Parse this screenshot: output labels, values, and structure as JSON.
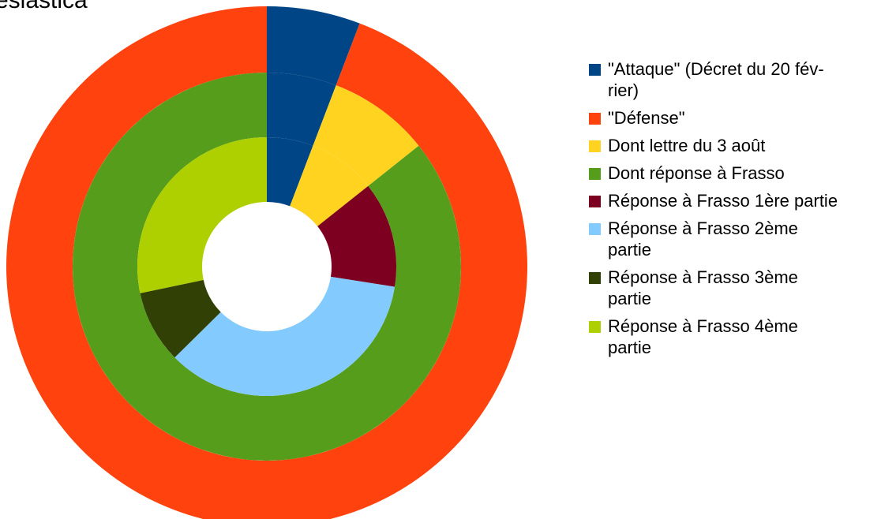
{
  "chart_data": {
    "type": "donut",
    "title": "esiastica",
    "legend_position": "right",
    "rings": [
      {
        "name": "",
        "slices": [
          {
            "legend_index": 0,
            "value": 5.8
          },
          {
            "legend_index": 1,
            "value": 94.2
          }
        ]
      },
      {
        "name": "",
        "slices": [
          {
            "legend_index": 0,
            "value": 5.8
          },
          {
            "legend_index": 2,
            "value": 8.5
          },
          {
            "legend_index": 3,
            "value": 85.7
          }
        ]
      },
      {
        "name": "",
        "slices": [
          {
            "legend_index": 0,
            "value": 5.8
          },
          {
            "legend_index": 2,
            "value": 8.5
          },
          {
            "legend_index": 4,
            "value": 13.2
          },
          {
            "legend_index": 5,
            "value": 35.1
          },
          {
            "legend_index": 6,
            "value": 9.1
          },
          {
            "legend_index": 7,
            "value": 28.3
          }
        ]
      }
    ],
    "legend": [
      {
        "label": "\"Attaque\" (Décret du 20 fév-rier)",
        "lines": [
          "\"Attaque\" (Décret du 20 fév-",
          "rier)"
        ],
        "color": "#004586"
      },
      {
        "label": "\"Défense\"",
        "lines": [
          "\"Défense\""
        ],
        "color": "#ff420e"
      },
      {
        "label": "Dont lettre du 3 août",
        "lines": [
          "Dont lettre du 3 août"
        ],
        "color": "#ffd320"
      },
      {
        "label": "Dont réponse à Frasso",
        "lines": [
          "Dont réponse à Frasso"
        ],
        "color": "#579d1c"
      },
      {
        "label": "Réponse à Frasso 1ère partie",
        "lines": [
          "Réponse à Frasso 1ère partie"
        ],
        "color": "#7e0021"
      },
      {
        "label": "Réponse à Frasso 2ème partie",
        "lines": [
          "Réponse à Frasso 2ème",
          "partie"
        ],
        "color": "#83caff"
      },
      {
        "label": "Réponse à Frasso 3ème partie",
        "lines": [
          "Réponse à Frasso 3ème",
          "partie"
        ],
        "color": "#314004"
      },
      {
        "label": "Réponse à Frasso 4ème partie",
        "lines": [
          "Réponse à Frasso 4ème",
          "partie"
        ],
        "color": "#aecf00"
      }
    ]
  }
}
